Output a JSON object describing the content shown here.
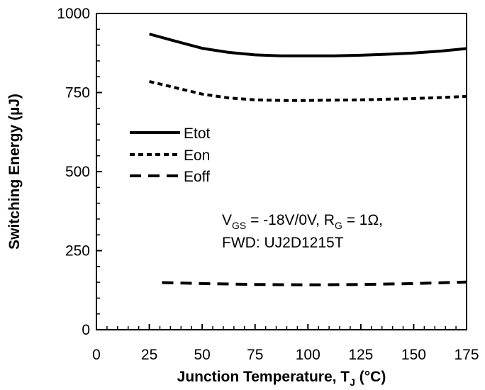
{
  "chart_data": {
    "type": "line",
    "title": "",
    "xlabel_main": "Junction Temperature, T",
    "xlabel_sub": "J",
    "xlabel_unit": " (°C)",
    "ylabel": "Switching Energy (µJ)",
    "xlim": [
      0,
      175
    ],
    "ylim": [
      0,
      1000
    ],
    "x_ticks": [
      0,
      25,
      50,
      75,
      100,
      125,
      150,
      175
    ],
    "y_ticks": [
      0,
      250,
      500,
      750,
      1000
    ],
    "grid": false,
    "legend_position": "left-middle",
    "series": [
      {
        "name": "Etot",
        "style": "solid",
        "points": [
          [
            25,
            935
          ],
          [
            37.5,
            912
          ],
          [
            50,
            890
          ],
          [
            62.5,
            877
          ],
          [
            75,
            869
          ],
          [
            87.5,
            866
          ],
          [
            100,
            866
          ],
          [
            112.5,
            866
          ],
          [
            125,
            868
          ],
          [
            137.5,
            871
          ],
          [
            150,
            875
          ],
          [
            162.5,
            881
          ],
          [
            175,
            889
          ]
        ]
      },
      {
        "name": "Eon",
        "style": "short-dash",
        "points": [
          [
            25,
            785
          ],
          [
            37.5,
            765
          ],
          [
            50,
            745
          ],
          [
            62.5,
            733
          ],
          [
            75,
            727
          ],
          [
            87.5,
            725
          ],
          [
            100,
            725
          ],
          [
            112.5,
            726
          ],
          [
            125,
            727
          ],
          [
            137.5,
            729
          ],
          [
            150,
            731
          ],
          [
            162.5,
            734
          ],
          [
            175,
            738
          ]
        ]
      },
      {
        "name": "Eoff",
        "style": "long-dash",
        "points": [
          [
            31,
            149
          ],
          [
            50,
            146
          ],
          [
            75,
            143
          ],
          [
            100,
            142
          ],
          [
            125,
            143
          ],
          [
            150,
            146
          ],
          [
            175,
            151
          ]
        ]
      }
    ],
    "annotation": {
      "line1_v": "V",
      "line1_v_sub": "GS",
      "line1_mid": " = -18V/0V, R",
      "line1_r_sub": "G",
      "line1_end": " = 1Ω,",
      "line2": "FWD: UJ2D1215T"
    },
    "colors": {
      "line": "#000000"
    }
  }
}
